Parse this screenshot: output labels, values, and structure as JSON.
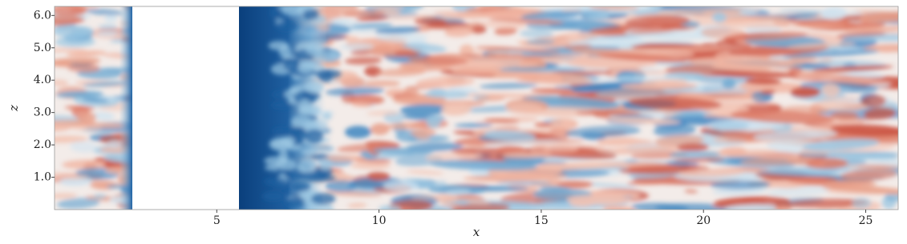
{
  "chart_data": {
    "type": "field",
    "x_label": "x",
    "y_label": "z",
    "xlim": [
      0,
      26
    ],
    "ylim": [
      0,
      6.28
    ],
    "xticks": [
      5,
      10,
      15,
      20,
      25
    ],
    "yticks": [
      {
        "value": 1,
        "label": "1.0"
      },
      {
        "value": 2,
        "label": "2.0"
      },
      {
        "value": 3,
        "label": "3.0"
      },
      {
        "value": 4,
        "label": "4.0"
      },
      {
        "value": 5,
        "label": "5.0"
      },
      {
        "value": 6,
        "label": "6.0"
      }
    ]
  }
}
